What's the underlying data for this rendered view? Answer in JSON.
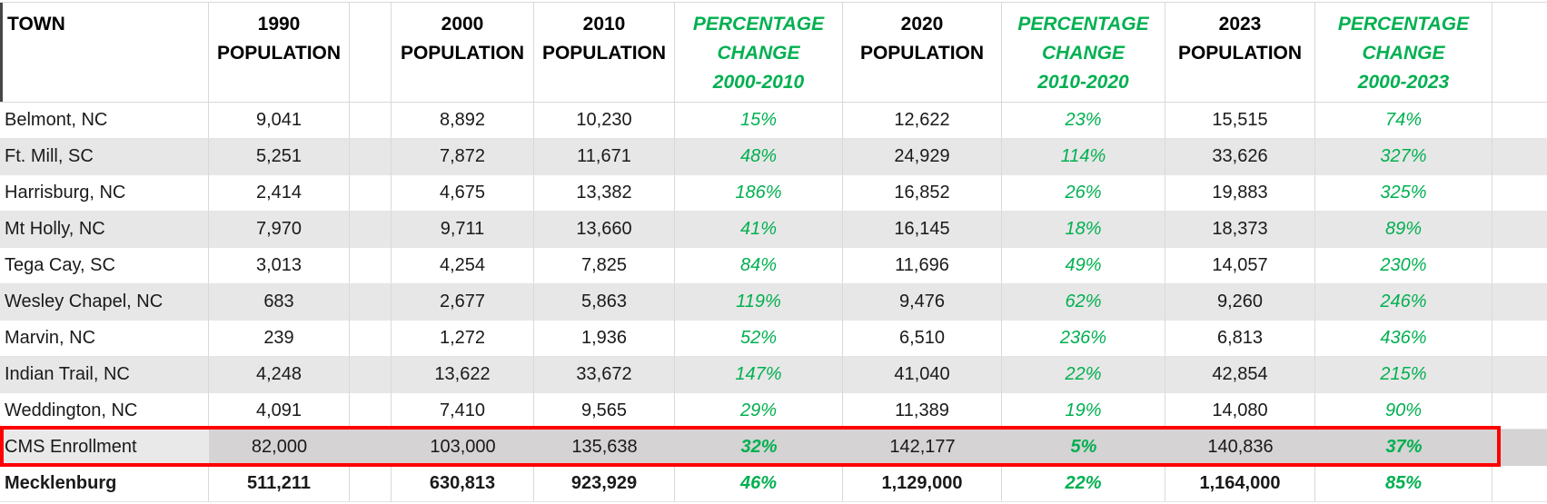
{
  "colors": {
    "green": "#00B050",
    "red": "#FF0000",
    "stripe_gray": "#E8E7E7",
    "highlight_row_gray": "#D5D3D3",
    "gridline": "#D9D9D9"
  },
  "header": {
    "town": "TOWN",
    "p1990": [
      "1990",
      "POPULATION"
    ],
    "p2000": [
      "2000",
      "POPULATION"
    ],
    "p2010": [
      "2010",
      "POPULATION"
    ],
    "pct_2000_2010": [
      "PERCENTAGE",
      "CHANGE",
      "2000-2010"
    ],
    "p2020": [
      "2020",
      "POPULATION"
    ],
    "pct_2010_2020": [
      "PERCENTAGE",
      "CHANGE",
      "2010-2020"
    ],
    "p2023": [
      "2023",
      "POPULATION"
    ],
    "pct_2000_2023": [
      "PERCENTAGE",
      "CHANGE",
      "2000-2023"
    ]
  },
  "rows": [
    {
      "town": "Belmont, NC",
      "p1990": "9,041",
      "p2000": "8,892",
      "p2010": "10,230",
      "pct_2000_2010": "15%",
      "p2020": "12,622",
      "pct_2010_2020": "23%",
      "p2023": "15,515",
      "pct_2000_2023": "74%",
      "stripe": false,
      "highlight": false,
      "bold": false
    },
    {
      "town": "Ft. Mill, SC",
      "p1990": "5,251",
      "p2000": "7,872",
      "p2010": "11,671",
      "pct_2000_2010": "48%",
      "p2020": "24,929",
      "pct_2010_2020": "114%",
      "p2023": "33,626",
      "pct_2000_2023": "327%",
      "stripe": true,
      "highlight": false,
      "bold": false
    },
    {
      "town": "Harrisburg, NC",
      "p1990": "2,414",
      "p2000": "4,675",
      "p2010": "13,382",
      "pct_2000_2010": "186%",
      "p2020": "16,852",
      "pct_2010_2020": "26%",
      "p2023": "19,883",
      "pct_2000_2023": "325%",
      "stripe": false,
      "highlight": false,
      "bold": false
    },
    {
      "town": "Mt Holly, NC",
      "p1990": "7,970",
      "p2000": "9,711",
      "p2010": "13,660",
      "pct_2000_2010": "41%",
      "p2020": "16,145",
      "pct_2010_2020": "18%",
      "p2023": "18,373",
      "pct_2000_2023": "89%",
      "stripe": true,
      "highlight": false,
      "bold": false
    },
    {
      "town": "Tega Cay, SC",
      "p1990": "3,013",
      "p2000": "4,254",
      "p2010": "7,825",
      "pct_2000_2010": "84%",
      "p2020": "11,696",
      "pct_2010_2020": "49%",
      "p2023": "14,057",
      "pct_2000_2023": "230%",
      "stripe": false,
      "highlight": false,
      "bold": false
    },
    {
      "town": "Wesley Chapel, NC",
      "p1990": "683",
      "p2000": "2,677",
      "p2010": "5,863",
      "pct_2000_2010": "119%",
      "p2020": "9,476",
      "pct_2010_2020": "62%",
      "p2023": "9,260",
      "pct_2000_2023": "246%",
      "stripe": true,
      "highlight": false,
      "bold": false
    },
    {
      "town": "Marvin, NC",
      "p1990": "239",
      "p2000": "1,272",
      "p2010": "1,936",
      "pct_2000_2010": "52%",
      "p2020": "6,510",
      "pct_2010_2020": "236%",
      "p2023": "6,813",
      "pct_2000_2023": "436%",
      "stripe": false,
      "highlight": false,
      "bold": false
    },
    {
      "town": "Indian Trail, NC",
      "p1990": "4,248",
      "p2000": "13,622",
      "p2010": "33,672",
      "pct_2000_2010": "147%",
      "p2020": "41,040",
      "pct_2010_2020": "22%",
      "p2023": "42,854",
      "pct_2000_2023": "215%",
      "stripe": true,
      "highlight": false,
      "bold": false
    },
    {
      "town": "Weddington, NC",
      "p1990": "4,091",
      "p2000": "7,410",
      "p2010": "9,565",
      "pct_2000_2010": "29%",
      "p2020": "11,389",
      "pct_2010_2020": "19%",
      "p2023": "14,080",
      "pct_2000_2023": "90%",
      "stripe": false,
      "highlight": false,
      "bold": false
    },
    {
      "town": "CMS Enrollment",
      "p1990": "82,000",
      "p2000": "103,000",
      "p2010": "135,638",
      "pct_2000_2010": "32%",
      "p2020": "142,177",
      "pct_2010_2020": "5%",
      "p2023": "140,836",
      "pct_2000_2023": "37%",
      "stripe": false,
      "highlight": true,
      "bold": false
    },
    {
      "town": "Mecklenburg",
      "p1990": "511,211",
      "p2000": "630,813",
      "p2010": "923,929",
      "pct_2000_2010": "46%",
      "p2020": "1,129,000",
      "pct_2010_2020": "22%",
      "p2023": "1,164,000",
      "pct_2000_2023": "85%",
      "stripe": false,
      "highlight": false,
      "bold": true
    }
  ]
}
